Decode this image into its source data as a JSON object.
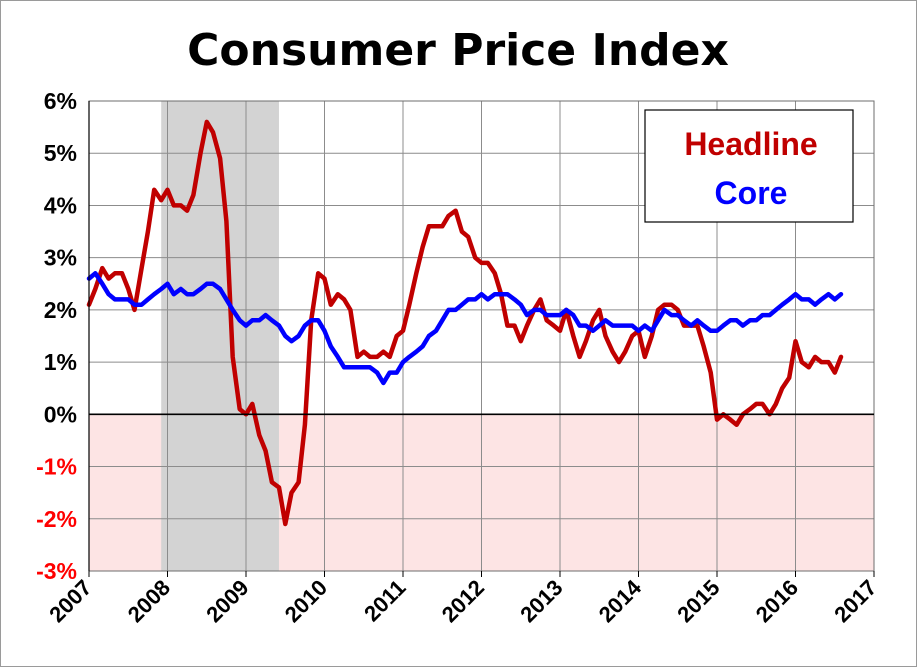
{
  "chart_data": {
    "type": "line",
    "title": "Consumer Price Index",
    "xlabel": "",
    "ylabel": "",
    "xlim": [
      2007,
      2017
    ],
    "ylim": [
      -3,
      6
    ],
    "y_ticks": [
      {
        "value": 6,
        "label": "6%"
      },
      {
        "value": 5,
        "label": "5%"
      },
      {
        "value": 4,
        "label": "4%"
      },
      {
        "value": 3,
        "label": "3%"
      },
      {
        "value": 2,
        "label": "2%"
      },
      {
        "value": 1,
        "label": "1%"
      },
      {
        "value": 0,
        "label": "0%"
      },
      {
        "value": -1,
        "label": "-1%"
      },
      {
        "value": -2,
        "label": "-2%"
      },
      {
        "value": -3,
        "label": "-3%"
      }
    ],
    "x_ticks": [
      {
        "value": 2007,
        "label": "2007"
      },
      {
        "value": 2008,
        "label": "2008"
      },
      {
        "value": 2009,
        "label": "2009"
      },
      {
        "value": 2010,
        "label": "2010"
      },
      {
        "value": 2011,
        "label": "2011"
      },
      {
        "value": 2012,
        "label": "2012"
      },
      {
        "value": 2013,
        "label": "2013"
      },
      {
        "value": 2014,
        "label": "2014"
      },
      {
        "value": 2015,
        "label": "2015"
      },
      {
        "value": 2016,
        "label": "2016"
      },
      {
        "value": 2017,
        "label": "2017"
      }
    ],
    "grid": true,
    "legend_position": "top-right",
    "recession_shading": {
      "start": 2007.92,
      "end": 2009.42
    },
    "negative_region_shading": {
      "from": -3,
      "to": 0
    },
    "colors": {
      "headline": "#c00000",
      "core": "#0000ff",
      "recession": "#d3d3d3",
      "negative_region": "#fde4e4",
      "negative_label": "#ff0000",
      "positive_label": "#000000"
    },
    "series": [
      {
        "name": "Headline",
        "x": [
          2007.0,
          2007.08,
          2007.17,
          2007.25,
          2007.33,
          2007.42,
          2007.5,
          2007.58,
          2007.67,
          2007.75,
          2007.83,
          2007.92,
          2008.0,
          2008.08,
          2008.17,
          2008.25,
          2008.33,
          2008.42,
          2008.5,
          2008.58,
          2008.67,
          2008.75,
          2008.83,
          2008.92,
          2009.0,
          2009.08,
          2009.17,
          2009.25,
          2009.33,
          2009.42,
          2009.5,
          2009.58,
          2009.67,
          2009.75,
          2009.83,
          2009.92,
          2010.0,
          2010.08,
          2010.17,
          2010.25,
          2010.33,
          2010.42,
          2010.5,
          2010.58,
          2010.67,
          2010.75,
          2010.83,
          2010.92,
          2011.0,
          2011.08,
          2011.17,
          2011.25,
          2011.33,
          2011.42,
          2011.5,
          2011.58,
          2011.67,
          2011.75,
          2011.83,
          2011.92,
          2012.0,
          2012.08,
          2012.17,
          2012.25,
          2012.33,
          2012.42,
          2012.5,
          2012.58,
          2012.67,
          2012.75,
          2012.83,
          2012.92,
          2013.0,
          2013.08,
          2013.17,
          2013.25,
          2013.33,
          2013.42,
          2013.5,
          2013.58,
          2013.67,
          2013.75,
          2013.83,
          2013.92,
          2014.0,
          2014.08,
          2014.17,
          2014.25,
          2014.33,
          2014.42,
          2014.5,
          2014.58,
          2014.67,
          2014.75,
          2014.83,
          2014.92,
          2015.0,
          2015.08,
          2015.17,
          2015.25,
          2015.33,
          2015.42,
          2015.5,
          2015.58,
          2015.67,
          2015.75,
          2015.83,
          2015.92,
          2016.0,
          2016.08,
          2016.17,
          2016.25,
          2016.33,
          2016.42,
          2016.5,
          2016.58
        ],
        "values": [
          2.1,
          2.4,
          2.8,
          2.6,
          2.7,
          2.7,
          2.4,
          2.0,
          2.8,
          3.5,
          4.3,
          4.1,
          4.3,
          4.0,
          4.0,
          3.9,
          4.2,
          5.0,
          5.6,
          5.4,
          4.9,
          3.7,
          1.1,
          0.1,
          0.0,
          0.2,
          -0.4,
          -0.7,
          -1.3,
          -1.4,
          -2.1,
          -1.5,
          -1.3,
          -0.2,
          1.8,
          2.7,
          2.6,
          2.1,
          2.3,
          2.2,
          2.0,
          1.1,
          1.2,
          1.1,
          1.1,
          1.2,
          1.1,
          1.5,
          1.6,
          2.1,
          2.7,
          3.2,
          3.6,
          3.6,
          3.6,
          3.8,
          3.9,
          3.5,
          3.4,
          3.0,
          2.9,
          2.9,
          2.7,
          2.3,
          1.7,
          1.7,
          1.4,
          1.7,
          2.0,
          2.2,
          1.8,
          1.7,
          1.6,
          2.0,
          1.5,
          1.1,
          1.4,
          1.8,
          2.0,
          1.5,
          1.2,
          1.0,
          1.2,
          1.5,
          1.6,
          1.1,
          1.5,
          2.0,
          2.1,
          2.1,
          2.0,
          1.7,
          1.7,
          1.7,
          1.3,
          0.8,
          -0.1,
          0.0,
          -0.1,
          -0.2,
          0.0,
          0.1,
          0.2,
          0.2,
          0.0,
          0.2,
          0.5,
          0.7,
          1.4,
          1.0,
          0.9,
          1.1,
          1.0,
          1.0,
          0.8,
          1.1
        ]
      },
      {
        "name": "Core",
        "x": [
          2007.0,
          2007.08,
          2007.17,
          2007.25,
          2007.33,
          2007.42,
          2007.5,
          2007.58,
          2007.67,
          2007.75,
          2007.83,
          2007.92,
          2008.0,
          2008.08,
          2008.17,
          2008.25,
          2008.33,
          2008.42,
          2008.5,
          2008.58,
          2008.67,
          2008.75,
          2008.83,
          2008.92,
          2009.0,
          2009.08,
          2009.17,
          2009.25,
          2009.33,
          2009.42,
          2009.5,
          2009.58,
          2009.67,
          2009.75,
          2009.83,
          2009.92,
          2010.0,
          2010.08,
          2010.17,
          2010.25,
          2010.33,
          2010.42,
          2010.5,
          2010.58,
          2010.67,
          2010.75,
          2010.83,
          2010.92,
          2011.0,
          2011.08,
          2011.17,
          2011.25,
          2011.33,
          2011.42,
          2011.5,
          2011.58,
          2011.67,
          2011.75,
          2011.83,
          2011.92,
          2012.0,
          2012.08,
          2012.17,
          2012.25,
          2012.33,
          2012.42,
          2012.5,
          2012.58,
          2012.67,
          2012.75,
          2012.83,
          2012.92,
          2013.0,
          2013.08,
          2013.17,
          2013.25,
          2013.33,
          2013.42,
          2013.5,
          2013.58,
          2013.67,
          2013.75,
          2013.83,
          2013.92,
          2014.0,
          2014.08,
          2014.17,
          2014.25,
          2014.33,
          2014.42,
          2014.5,
          2014.58,
          2014.67,
          2014.75,
          2014.83,
          2014.92,
          2015.0,
          2015.08,
          2015.17,
          2015.25,
          2015.33,
          2015.42,
          2015.5,
          2015.58,
          2015.67,
          2015.75,
          2015.83,
          2015.92,
          2016.0,
          2016.08,
          2016.17,
          2016.25,
          2016.33,
          2016.42,
          2016.5,
          2016.58
        ],
        "values": [
          2.6,
          2.7,
          2.5,
          2.3,
          2.2,
          2.2,
          2.2,
          2.1,
          2.1,
          2.2,
          2.3,
          2.4,
          2.5,
          2.3,
          2.4,
          2.3,
          2.3,
          2.4,
          2.5,
          2.5,
          2.4,
          2.2,
          2.0,
          1.8,
          1.7,
          1.8,
          1.8,
          1.9,
          1.8,
          1.7,
          1.5,
          1.4,
          1.5,
          1.7,
          1.8,
          1.8,
          1.6,
          1.3,
          1.1,
          0.9,
          0.9,
          0.9,
          0.9,
          0.9,
          0.8,
          0.6,
          0.8,
          0.8,
          1.0,
          1.1,
          1.2,
          1.3,
          1.5,
          1.6,
          1.8,
          2.0,
          2.0,
          2.1,
          2.2,
          2.2,
          2.3,
          2.2,
          2.3,
          2.3,
          2.3,
          2.2,
          2.1,
          1.9,
          2.0,
          2.0,
          1.9,
          1.9,
          1.9,
          2.0,
          1.9,
          1.7,
          1.7,
          1.6,
          1.7,
          1.8,
          1.7,
          1.7,
          1.7,
          1.7,
          1.6,
          1.7,
          1.6,
          1.8,
          2.0,
          1.9,
          1.9,
          1.8,
          1.7,
          1.8,
          1.7,
          1.6,
          1.6,
          1.7,
          1.8,
          1.8,
          1.7,
          1.8,
          1.8,
          1.9,
          1.9,
          2.0,
          2.1,
          2.2,
          2.3,
          2.2,
          2.2,
          2.1,
          2.2,
          2.3,
          2.2,
          2.3
        ]
      }
    ]
  }
}
